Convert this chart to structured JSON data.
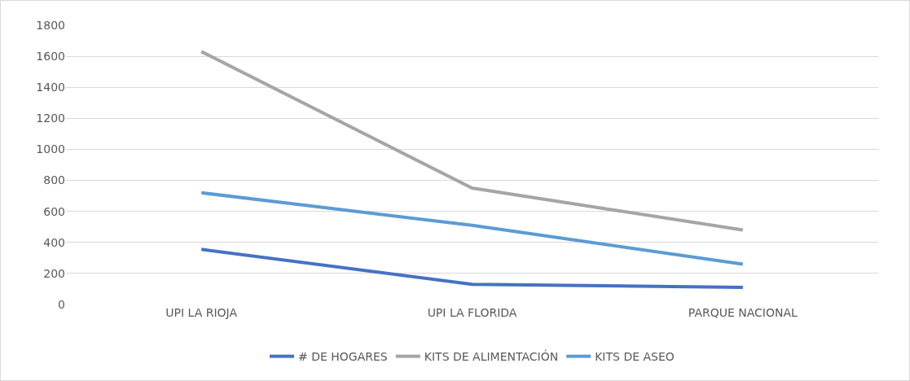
{
  "chart_data": {
    "type": "line",
    "categories": [
      "UPI LA RIOJA",
      "UPI LA FLORIDA",
      "PARQUE NACIONAL"
    ],
    "series": [
      {
        "name": "# DE HOGARES",
        "color": "#4472c4",
        "values": [
          355,
          130,
          110
        ]
      },
      {
        "name": "KITS DE ALIMENTACIÓN",
        "color": "#a5a5a5",
        "values": [
          1630,
          750,
          480
        ]
      },
      {
        "name": "KITS DE ASEO",
        "color": "#5b9bd5",
        "values": [
          720,
          510,
          260
        ]
      }
    ],
    "ylim": [
      0,
      1800
    ],
    "yticks": [
      0,
      200,
      400,
      600,
      800,
      1000,
      1200,
      1400,
      1600,
      1800
    ],
    "grid": "y",
    "legend": "bottom",
    "marker": "none",
    "line_style": "solid"
  }
}
